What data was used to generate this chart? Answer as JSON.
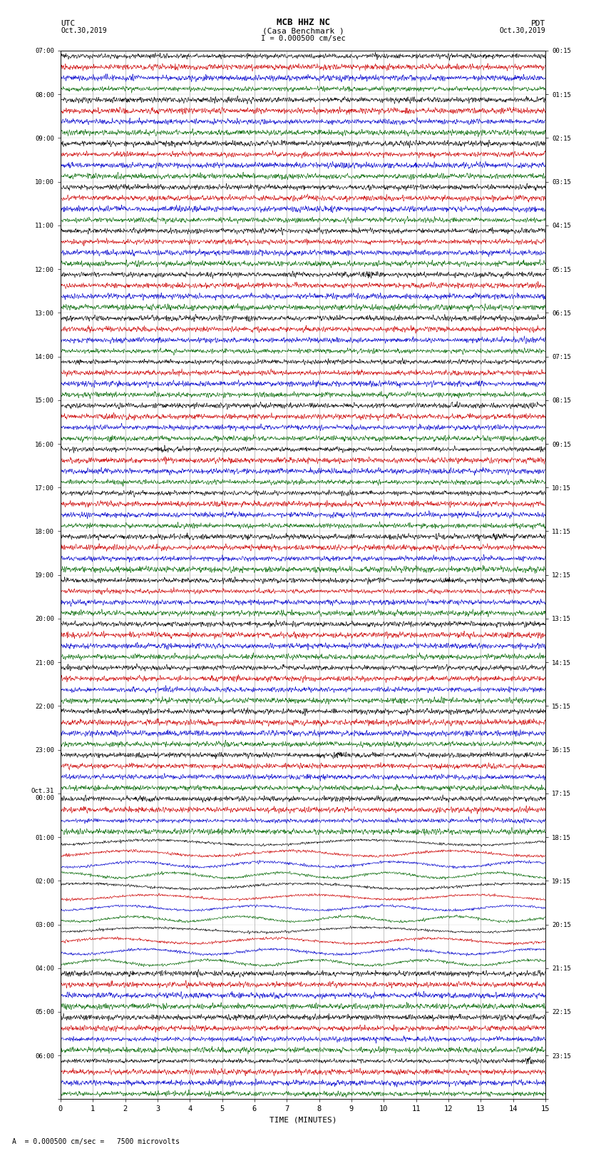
{
  "title_line1": "MCB HHZ NC",
  "title_line2": "(Casa Benchmark )",
  "scale_text": "I = 0.000500 cm/sec",
  "bottom_scale_text": "A  = 0.000500 cm/sec =   7500 microvolts",
  "xlabel": "TIME (MINUTES)",
  "x_ticks": [
    0,
    1,
    2,
    3,
    4,
    5,
    6,
    7,
    8,
    9,
    10,
    11,
    12,
    13,
    14,
    15
  ],
  "background_color": "#ffffff",
  "trace_colors": [
    "#000000",
    "#cc0000",
    "#0000cc",
    "#006600"
  ],
  "num_hour_rows": 24,
  "traces_per_row": 4,
  "utc_labels": [
    "07:00",
    "08:00",
    "09:00",
    "10:00",
    "11:00",
    "12:00",
    "13:00",
    "14:00",
    "15:00",
    "16:00",
    "17:00",
    "18:00",
    "19:00",
    "20:00",
    "21:00",
    "22:00",
    "23:00",
    "Oct.31\n00:00",
    "01:00",
    "02:00",
    "03:00",
    "04:00",
    "05:00",
    "06:00"
  ],
  "pdt_labels": [
    "00:15",
    "01:15",
    "02:15",
    "03:15",
    "04:15",
    "05:15",
    "06:15",
    "07:15",
    "08:15",
    "09:15",
    "10:15",
    "11:15",
    "12:15",
    "13:15",
    "14:15",
    "15:15",
    "16:15",
    "17:15",
    "18:15",
    "19:15",
    "20:15",
    "21:15",
    "22:15",
    "23:15"
  ],
  "big_wiggle_row": 19,
  "big_wiggle_rows": [
    18,
    19,
    20
  ],
  "noise_seed": 12345
}
